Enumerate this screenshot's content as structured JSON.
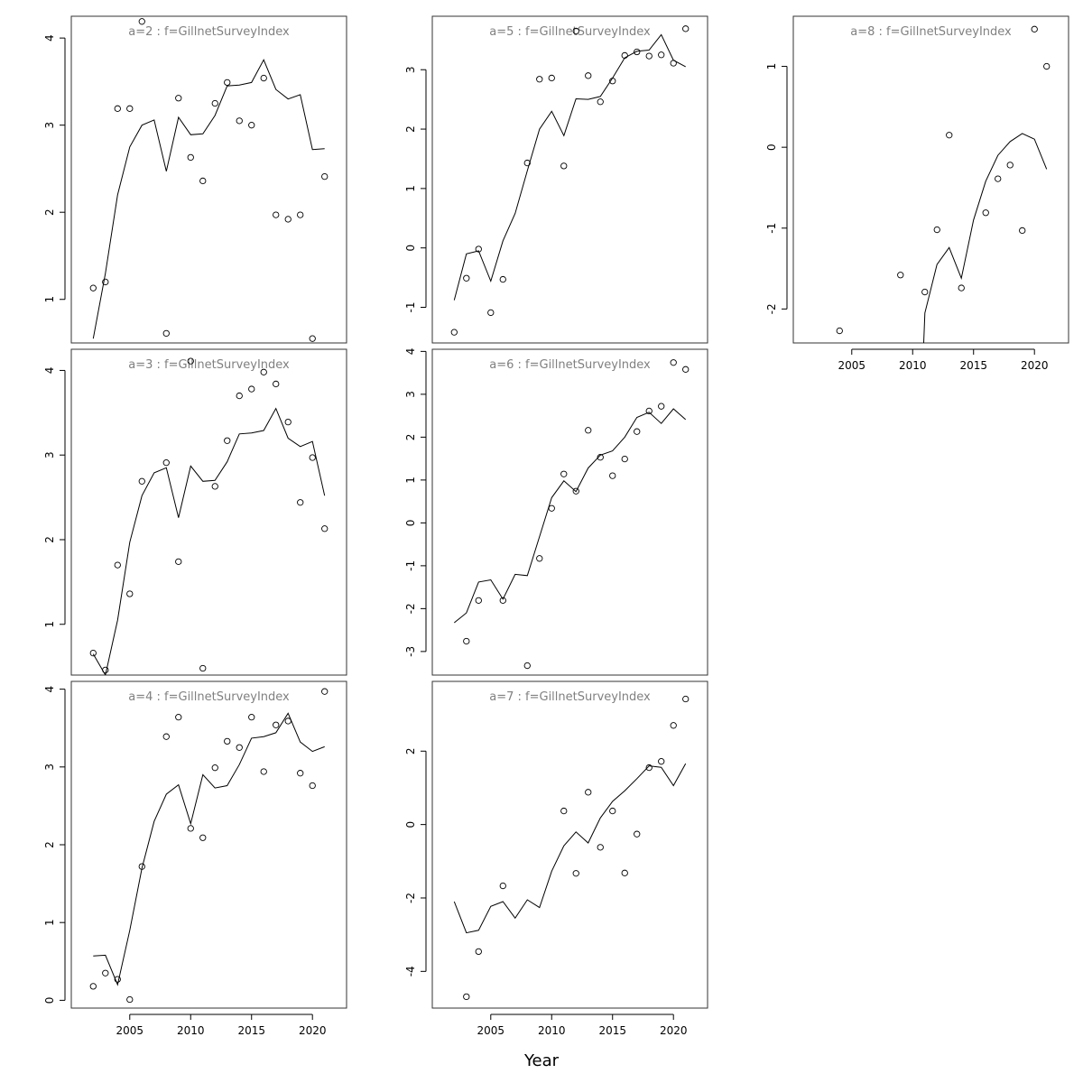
{
  "chart_data": {
    "type": "scatter",
    "xlabel": "Year",
    "x_ticks": [
      2005,
      2010,
      2015,
      2020
    ],
    "panels": [
      {
        "title": "a=2  :  f=GillnetSurveyIndex",
        "xlim": [
          2000.2,
          2022.8
        ],
        "ylim": [
          0.5,
          4.25
        ],
        "y_ticks": [
          1,
          2,
          3,
          4
        ],
        "observed": {
          "x": [
            2002,
            2003,
            2004,
            2005,
            2006,
            2008,
            2009,
            2010,
            2011,
            2012,
            2013,
            2014,
            2015,
            2016,
            2017,
            2018,
            2019,
            2020,
            2021
          ],
          "y": [
            1.13,
            1.2,
            3.19,
            3.19,
            4.19,
            0.61,
            3.31,
            2.63,
            2.36,
            3.25,
            3.49,
            3.05,
            3.0,
            3.54,
            1.97,
            1.92,
            1.97,
            0.55,
            2.41
          ]
        },
        "fitted": {
          "x": [
            2002,
            2003,
            2004,
            2005,
            2006,
            2007,
            2008,
            2009,
            2010,
            2011,
            2012,
            2013,
            2014,
            2015,
            2016,
            2017,
            2018,
            2019,
            2020,
            2021
          ],
          "y": [
            0.55,
            1.3,
            2.2,
            2.75,
            3.0,
            3.06,
            2.47,
            3.09,
            2.89,
            2.9,
            3.11,
            3.45,
            3.46,
            3.49,
            3.75,
            3.41,
            3.3,
            3.35,
            2.72,
            2.73
          ]
        }
      },
      {
        "title": "a=3  :  f=GillnetSurveyIndex",
        "xlim": [
          2000.2,
          2022.8
        ],
        "ylim": [
          0.4,
          4.25
        ],
        "y_ticks": [
          1,
          2,
          3,
          4
        ],
        "observed": {
          "x": [
            2002,
            2003,
            2004,
            2005,
            2006,
            2008,
            2009,
            2010,
            2011,
            2012,
            2013,
            2014,
            2015,
            2016,
            2017,
            2018,
            2019,
            2020,
            2021
          ],
          "y": [
            0.66,
            0.46,
            1.7,
            1.36,
            2.69,
            2.91,
            1.74,
            4.11,
            0.48,
            2.63,
            3.17,
            3.7,
            3.78,
            3.98,
            3.84,
            3.39,
            2.44,
            2.97,
            2.13
          ]
        },
        "fitted": {
          "x": [
            2002,
            2003,
            2004,
            2005,
            2006,
            2007,
            2008,
            2009,
            2010,
            2011,
            2012,
            2013,
            2014,
            2015,
            2016,
            2017,
            2018,
            2019,
            2020,
            2021
          ],
          "y": [
            0.65,
            0.4,
            1.05,
            1.97,
            2.52,
            2.79,
            2.85,
            2.26,
            2.87,
            2.69,
            2.7,
            2.92,
            3.25,
            3.26,
            3.29,
            3.55,
            3.2,
            3.1,
            3.16,
            2.52
          ]
        }
      },
      {
        "title": "a=4  :  f=GillnetSurveyIndex",
        "xlim": [
          2000.2,
          2022.8
        ],
        "ylim": [
          -0.1,
          4.1
        ],
        "y_ticks": [
          0,
          1,
          2,
          3,
          4
        ],
        "observed": {
          "x": [
            2002,
            2003,
            2004,
            2005,
            2006,
            2008,
            2009,
            2010,
            2011,
            2012,
            2013,
            2014,
            2015,
            2016,
            2017,
            2018,
            2019,
            2020,
            2021
          ],
          "y": [
            0.18,
            0.35,
            0.27,
            0.01,
            1.72,
            3.39,
            3.64,
            2.21,
            2.09,
            2.99,
            3.33,
            3.25,
            3.64,
            2.94,
            3.54,
            3.59,
            2.92,
            2.76,
            3.97
          ]
        },
        "fitted": {
          "x": [
            2002,
            2003,
            2004,
            2005,
            2006,
            2007,
            2008,
            2009,
            2010,
            2011,
            2012,
            2013,
            2014,
            2015,
            2016,
            2017,
            2018,
            2019,
            2020,
            2021
          ],
          "y": [
            0.57,
            0.58,
            0.2,
            0.9,
            1.7,
            2.3,
            2.65,
            2.77,
            2.27,
            2.9,
            2.73,
            2.76,
            3.03,
            3.37,
            3.39,
            3.44,
            3.69,
            3.32,
            3.2,
            3.26
          ]
        }
      },
      {
        "title": "a=5  :  f=GillnetSurveyIndex",
        "xlim": [
          2000.2,
          2022.8
        ],
        "ylim": [
          -1.6,
          3.9
        ],
        "y_ticks": [
          -1,
          0,
          1,
          2,
          3
        ],
        "observed": {
          "x": [
            2002,
            2003,
            2004,
            2005,
            2006,
            2008,
            2009,
            2010,
            2011,
            2012,
            2013,
            2014,
            2015,
            2016,
            2017,
            2018,
            2019,
            2020,
            2021
          ],
          "y": [
            -1.42,
            -0.51,
            -0.02,
            -1.09,
            -0.53,
            1.43,
            2.84,
            2.86,
            1.38,
            3.65,
            2.9,
            2.46,
            2.81,
            3.24,
            3.3,
            3.23,
            3.25,
            3.11,
            3.69
          ]
        },
        "fitted": {
          "x": [
            2002,
            2003,
            2004,
            2005,
            2006,
            2007,
            2008,
            2009,
            2010,
            2011,
            2012,
            2013,
            2014,
            2015,
            2016,
            2017,
            2018,
            2019,
            2020,
            2021
          ],
          "y": [
            -0.88,
            -0.1,
            -0.05,
            -0.56,
            0.12,
            0.58,
            1.3,
            2.0,
            2.3,
            1.89,
            2.51,
            2.5,
            2.55,
            2.86,
            3.2,
            3.31,
            3.33,
            3.59,
            3.16,
            3.05
          ]
        }
      },
      {
        "title": "a=6  :  f=GillnetSurveyIndex",
        "xlim": [
          2000.2,
          2022.8
        ],
        "ylim": [
          -3.55,
          4.05
        ],
        "y_ticks": [
          -3,
          -2,
          -1,
          0,
          1,
          2,
          3,
          4
        ],
        "observed": {
          "x": [
            2003,
            2004,
            2006,
            2008,
            2009,
            2010,
            2011,
            2012,
            2013,
            2014,
            2015,
            2016,
            2017,
            2018,
            2019,
            2020,
            2021
          ],
          "y": [
            -2.76,
            -1.81,
            -1.81,
            -3.33,
            -0.83,
            0.34,
            1.14,
            0.74,
            2.16,
            1.53,
            1.1,
            1.49,
            2.13,
            2.61,
            2.72,
            3.74,
            3.58
          ]
        },
        "fitted": {
          "x": [
            2002,
            2003,
            2004,
            2005,
            2006,
            2007,
            2008,
            2009,
            2010,
            2011,
            2012,
            2013,
            2014,
            2015,
            2016,
            2017,
            2018,
            2019,
            2020,
            2021
          ],
          "y": [
            -2.33,
            -2.1,
            -1.38,
            -1.33,
            -1.78,
            -1.2,
            -1.23,
            -0.32,
            0.59,
            0.98,
            0.73,
            1.28,
            1.58,
            1.68,
            2.0,
            2.46,
            2.58,
            2.32,
            2.66,
            2.41
          ]
        }
      },
      {
        "title": "a=7  :  f=GillnetSurveyIndex",
        "xlim": [
          2000.2,
          2022.8
        ],
        "ylim": [
          -5.0,
          3.9
        ],
        "y_ticks": [
          -4,
          -2,
          0,
          2
        ],
        "observed": {
          "x": [
            2003,
            2004,
            2006,
            2011,
            2012,
            2013,
            2014,
            2015,
            2016,
            2017,
            2018,
            2019,
            2020,
            2021
          ],
          "y": [
            -4.69,
            -3.46,
            -1.67,
            0.37,
            -1.33,
            0.88,
            -0.62,
            0.37,
            -1.32,
            -0.26,
            1.55,
            1.72,
            2.7,
            3.42
          ]
        },
        "fitted": {
          "x": [
            2002,
            2003,
            2004,
            2005,
            2006,
            2007,
            2008,
            2009,
            2010,
            2011,
            2012,
            2013,
            2014,
            2015,
            2016,
            2017,
            2018,
            2019,
            2020,
            2021
          ],
          "y": [
            -2.1,
            -2.95,
            -2.88,
            -2.23,
            -2.1,
            -2.55,
            -2.05,
            -2.26,
            -1.27,
            -0.58,
            -0.2,
            -0.5,
            0.18,
            0.63,
            0.92,
            1.25,
            1.6,
            1.56,
            1.06,
            1.66
          ]
        }
      },
      {
        "title": "a=8  :  f=GillnetSurveyIndex",
        "xlim": [
          2000.2,
          2022.8
        ],
        "ylim": [
          -2.42,
          1.62
        ],
        "y_ticks": [
          -2,
          -1,
          0,
          1
        ],
        "observed": {
          "x": [
            2004,
            2009,
            2011,
            2012,
            2013,
            2014,
            2016,
            2017,
            2018,
            2019,
            2020,
            2021
          ],
          "y": [
            -2.27,
            -1.58,
            -1.79,
            -1.02,
            0.15,
            -1.74,
            -0.81,
            -0.39,
            -0.22,
            -1.03,
            1.46,
            1.0
          ]
        },
        "fitted": {
          "x": [
            2010.9,
            2011,
            2012,
            2013,
            2014,
            2015,
            2016,
            2017,
            2018,
            2019,
            2020,
            2021
          ],
          "y": [
            -2.45,
            -2.05,
            -1.45,
            -1.24,
            -1.62,
            -0.9,
            -0.42,
            -0.1,
            0.07,
            0.17,
            0.1,
            -0.27
          ]
        }
      }
    ]
  }
}
